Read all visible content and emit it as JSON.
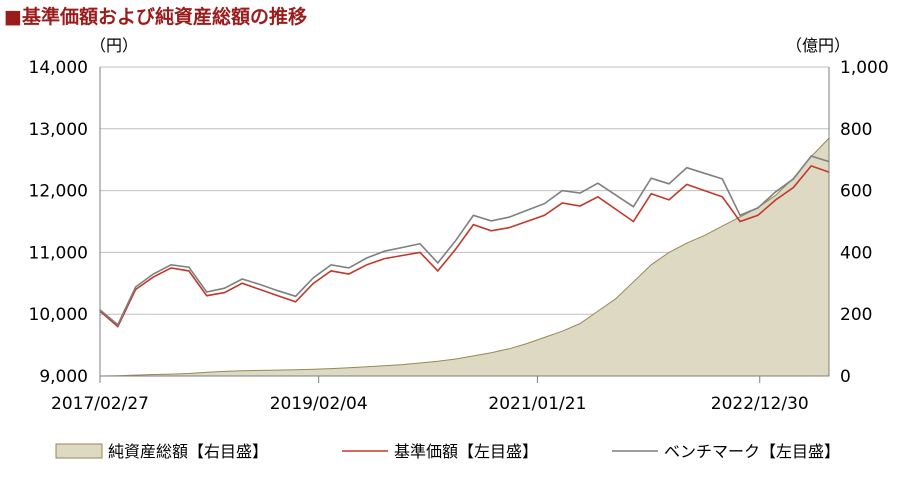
{
  "title": "■基準価額および純資産総額の推移",
  "chart_data": {
    "type": "line",
    "left_axis": {
      "unit": "（円）",
      "min": 9000,
      "max": 14000,
      "ticks": [
        "9,000",
        "10,000",
        "11,000",
        "12,000",
        "13,000",
        "14,000"
      ]
    },
    "right_axis": {
      "unit": "（億円）",
      "min": 0,
      "max": 1000,
      "ticks": [
        "0",
        "200",
        "400",
        "600",
        "800",
        "1,000"
      ]
    },
    "x_ticks": [
      "2017/02/27",
      "2019/02/04",
      "2021/01/21",
      "2022/12/30"
    ],
    "grid": "horizontal",
    "legend_position": "bottom",
    "x": [
      "2017/02",
      "2017/04",
      "2017/06",
      "2017/08",
      "2017/10",
      "2017/12",
      "2018/02",
      "2018/04",
      "2018/06",
      "2018/08",
      "2018/10",
      "2018/12",
      "2019/02",
      "2019/04",
      "2019/06",
      "2019/08",
      "2019/10",
      "2019/12",
      "2020/02",
      "2020/03",
      "2020/04",
      "2020/06",
      "2020/08",
      "2020/10",
      "2020/12",
      "2021/02",
      "2021/04",
      "2021/06",
      "2021/08",
      "2021/10",
      "2021/12",
      "2022/02",
      "2022/04",
      "2022/06",
      "2022/08",
      "2022/10",
      "2022/12",
      "2023/02",
      "2023/04",
      "2023/06",
      "2023/08",
      "2023/09"
    ],
    "series": [
      {
        "name": "純資産総額【右目盛】",
        "type": "area",
        "axis": "right",
        "color": "#ddd9c3",
        "stroke": "#948a54",
        "values": [
          0,
          1,
          3,
          5,
          6,
          8,
          12,
          15,
          17,
          18,
          19,
          20,
          22,
          24,
          27,
          30,
          33,
          37,
          42,
          48,
          55,
          65,
          75,
          88,
          105,
          125,
          145,
          170,
          210,
          250,
          305,
          360,
          400,
          430,
          455,
          485,
          515,
          545,
          585,
          640,
          710,
          770
        ]
      },
      {
        "name": "基準価額【左目盛】",
        "type": "line",
        "axis": "left",
        "color": "#c0392b",
        "values": [
          10050,
          9800,
          10400,
          10600,
          10750,
          10700,
          10300,
          10350,
          10500,
          10400,
          10300,
          10200,
          10500,
          10700,
          10650,
          10800,
          10900,
          10950,
          11000,
          10700,
          11050,
          11450,
          11350,
          11400,
          11500,
          11600,
          11800,
          11750,
          11900,
          11700,
          11500,
          11950,
          11850,
          12100,
          12000,
          11900,
          11500,
          11600,
          11850,
          12050,
          12400,
          12300
        ]
      },
      {
        "name": "ベンチマーク【左目盛】",
        "type": "line",
        "axis": "left",
        "color": "#7f7f7f",
        "values": [
          10070,
          9830,
          10440,
          10650,
          10800,
          10760,
          10360,
          10420,
          10570,
          10480,
          10380,
          10290,
          10590,
          10800,
          10750,
          10910,
          11020,
          11080,
          11140,
          10830,
          11190,
          11600,
          11510,
          11570,
          11680,
          11790,
          12000,
          11960,
          12120,
          11930,
          11740,
          12200,
          12110,
          12370,
          12280,
          12190,
          11600,
          11720,
          11980,
          12190,
          12560,
          12470
        ]
      }
    ]
  }
}
